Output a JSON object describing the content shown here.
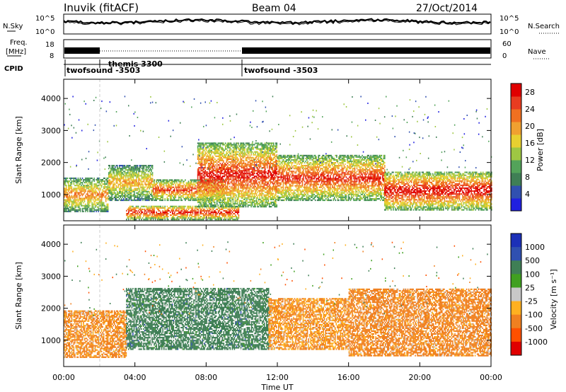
{
  "header": {
    "station": "Inuvik (fitACF)",
    "beam": "Beam 04",
    "date": "27/Oct/2014"
  },
  "noise_panel": {
    "left_label": "N.Sky",
    "right_label": "N.Search",
    "left_ticks": [
      "10^5",
      "10^0"
    ],
    "right_ticks": [
      "10^5",
      "10^0"
    ]
  },
  "freq_panel": {
    "left_label_1": "Freq.",
    "left_label_2": "[MHz]",
    "left_ticks": [
      "18",
      "8"
    ],
    "right_label": "Nave",
    "right_ticks": [
      "60",
      "0"
    ]
  },
  "cpid": {
    "label": "CPID",
    "segments": [
      {
        "name": "twofsound -3503",
        "start_hour": 0,
        "end_hour": 2
      },
      {
        "name": "themis 3300",
        "start_hour": 2,
        "end_hour": 10
      },
      {
        "name": "twofsound -3503",
        "start_hour": 10,
        "end_hour": 24
      }
    ]
  },
  "colors": {
    "power_scale": [
      "#2020e0",
      "#3050b0",
      "#3f7f55",
      "#53a35a",
      "#9ec743",
      "#e8d030",
      "#f0a030",
      "#f07020",
      "#e83c20",
      "#e00000"
    ],
    "velocity_scale": [
      "#e00000",
      "#ff5000",
      "#f08020",
      "#ffb020",
      "#c8c8c8",
      "#40a020",
      "#3f7f55",
      "#3050b0",
      "#1c30b8"
    ]
  },
  "chart_data": [
    {
      "type": "heatmap",
      "panel": "power",
      "title": "Beam 04",
      "xlabel": "Time UT",
      "ylabel": "Slant Range [km]",
      "x_ticks": [
        "00:00",
        "04:00",
        "08:00",
        "12:00",
        "16:00",
        "20:00",
        "00:00"
      ],
      "xlim_hours": [
        0,
        24
      ],
      "y_ticks": [
        "1000",
        "2000",
        "3000",
        "4000"
      ],
      "ylim_km": [
        180,
        4600
      ],
      "colorbar": {
        "label": "Power [dB]",
        "ticks": [
          "4",
          "8",
          "12",
          "16",
          "20",
          "24",
          "28"
        ],
        "range": [
          0,
          30
        ]
      },
      "echo_bands": [
        {
          "start_hour": 0.0,
          "end_hour": 2.5,
          "range_low_km": 450,
          "range_high_km": 1500,
          "peak_db": 22
        },
        {
          "start_hour": 2.5,
          "end_hour": 5.0,
          "range_low_km": 800,
          "range_high_km": 1900,
          "peak_db": 20
        },
        {
          "start_hour": 5.0,
          "end_hour": 9.0,
          "range_low_km": 800,
          "range_high_km": 1450,
          "peak_db": 26
        },
        {
          "start_hour": 3.5,
          "end_hour": 9.8,
          "range_low_km": 200,
          "range_high_km": 650,
          "peak_db": 28
        },
        {
          "start_hour": 7.5,
          "end_hour": 12.0,
          "range_low_km": 600,
          "range_high_km": 2600,
          "peak_db": 28
        },
        {
          "start_hour": 12.0,
          "end_hour": 18.0,
          "range_low_km": 800,
          "range_high_km": 2200,
          "peak_db": 27
        },
        {
          "start_hour": 18.0,
          "end_hour": 24.0,
          "range_low_km": 500,
          "range_high_km": 1700,
          "peak_db": 29
        }
      ]
    },
    {
      "type": "heatmap",
      "panel": "velocity",
      "xlabel": "Time UT",
      "ylabel": "Slant Range [km]",
      "x_ticks": [
        "00:00",
        "04:00",
        "08:00",
        "12:00",
        "16:00",
        "20:00",
        "00:00"
      ],
      "xlim_hours": [
        0,
        24
      ],
      "y_ticks": [
        "1000",
        "2000",
        "3000",
        "4000"
      ],
      "ylim_km": [
        180,
        4600
      ],
      "colorbar": {
        "label": "Velocity [m s⁻¹]",
        "ticks": [
          "1000",
          "500",
          "100",
          "25",
          "-25",
          "-100",
          "-500",
          "-1000"
        ],
        "range": [
          -1000,
          1000
        ]
      },
      "echo_bands": [
        {
          "start_hour": 0.0,
          "end_hour": 3.5,
          "range_low_km": 450,
          "range_high_km": 1900,
          "velocity_ms": -150
        },
        {
          "start_hour": 3.5,
          "end_hour": 11.5,
          "range_low_km": 700,
          "range_high_km": 2600,
          "velocity_ms": 300
        },
        {
          "start_hour": 11.5,
          "end_hour": 16.0,
          "range_low_km": 700,
          "range_high_km": 2300,
          "velocity_ms": -120
        },
        {
          "start_hour": 16.0,
          "end_hour": 24.0,
          "range_low_km": 500,
          "range_high_km": 2600,
          "velocity_ms": -200
        }
      ]
    }
  ]
}
